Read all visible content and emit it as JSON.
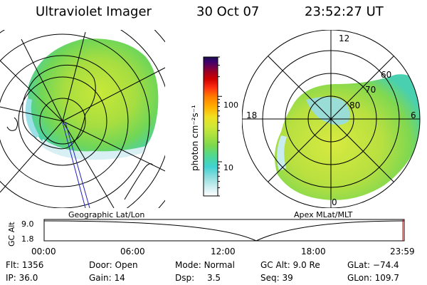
{
  "header": {
    "instrument": "Ultraviolet Imager",
    "date": "30 Oct 07",
    "time": "23:52:27 UT"
  },
  "colorbar": {
    "label": "photon cm⁻²s⁻¹",
    "scale": "log",
    "range": [
      3,
      400
    ],
    "ticks": [
      "100",
      "10"
    ],
    "tick_values": [
      100,
      10
    ],
    "colors": [
      "#ffffff",
      "#c8ecf0",
      "#8adcdc",
      "#40d2d2",
      "#50d890",
      "#7ad850",
      "#a8e040",
      "#d0e838",
      "#f0e020",
      "#ffb000",
      "#ff8000",
      "#ff3010",
      "#d00000",
      "#a00020",
      "#6a0050",
      "#3a0070",
      "#1a1048"
    ]
  },
  "panels": {
    "left_label": "Geographic Lat/Lon",
    "right_label": "Apex MLat/MLT",
    "right_mlt": [
      "12",
      "18",
      "6",
      "0"
    ],
    "right_mlat": [
      "80",
      "70",
      "60"
    ]
  },
  "altitude_strip": {
    "ylabel": "GC Alt",
    "ymax_label": "9.0",
    "ymin_label": "1.8",
    "time_ticks": [
      "00:00",
      "06:00",
      "12:00",
      "18:00",
      "23:59"
    ],
    "curve_min_time": "14:00",
    "current_time": "23:52"
  },
  "info": {
    "flt_label": "Flt:",
    "flt": "1356",
    "ip_label": "IP:",
    "ip": "36.0",
    "door_label": "Door:",
    "door": "Open",
    "gain_label": "Gain:",
    "gain": "14",
    "mode_label": "Mode:",
    "mode": "Normal",
    "dsp_label": "Dsp:",
    "dsp": "3.5",
    "gcalt_label": "GC Alt:",
    "gcalt": "9.0 Re",
    "seq_label": "Seq:",
    "seq": "39",
    "glat_label": "GLat:",
    "glat": "−74.4",
    "glon_label": "GLon:",
    "glon": "109.7"
  }
}
